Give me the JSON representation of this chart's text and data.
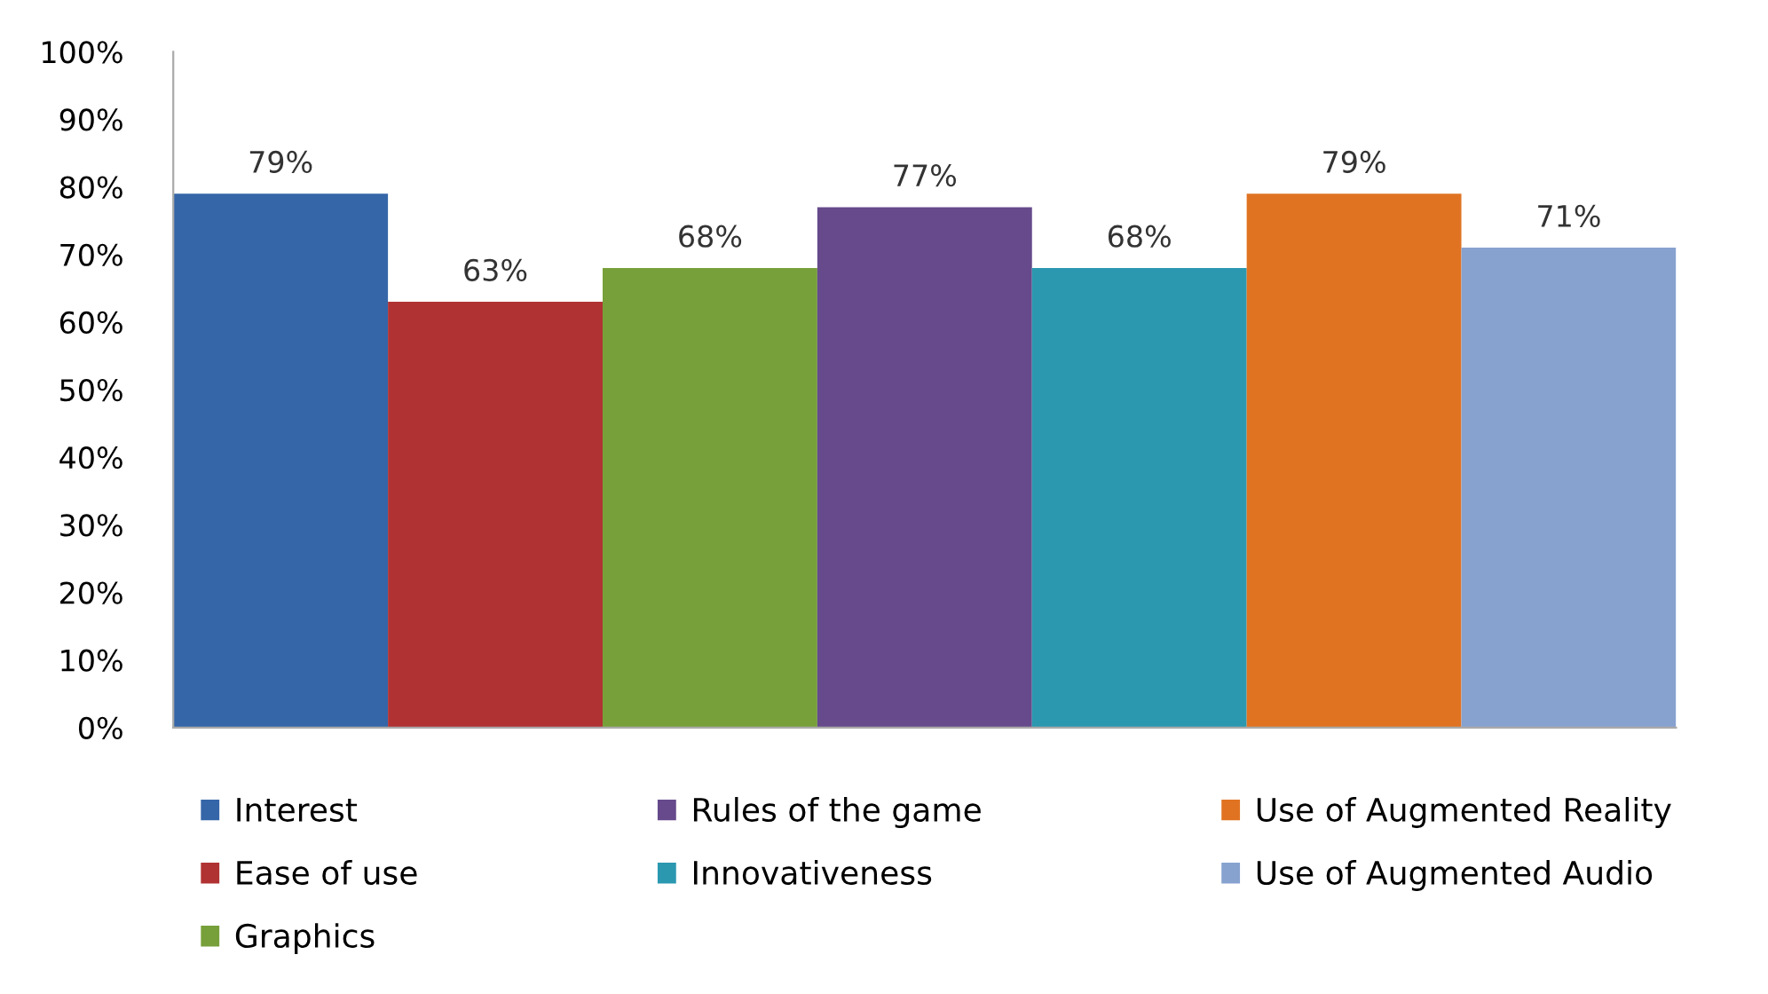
{
  "chart_data": {
    "type": "bar",
    "categories": [
      null
    ],
    "series": [
      {
        "name": "Interest",
        "color": "#3566a8",
        "values": [
          79
        ],
        "value_labels": [
          "79%"
        ]
      },
      {
        "name": "Ease of use",
        "color": "#b03232",
        "values": [
          63
        ],
        "value_labels": [
          "63%"
        ]
      },
      {
        "name": "Graphics",
        "color": "#77a03a",
        "values": [
          68
        ],
        "value_labels": [
          "68%"
        ]
      },
      {
        "name": "Rules of the game",
        "color": "#664a8c",
        "values": [
          77
        ],
        "value_labels": [
          "77%"
        ]
      },
      {
        "name": "Innovativeness",
        "color": "#2b98b0",
        "values": [
          68
        ],
        "value_labels": [
          "68%"
        ]
      },
      {
        "name": "Use of Augmented Reality",
        "color": "#e07322",
        "values": [
          79
        ],
        "value_labels": [
          "79%"
        ]
      },
      {
        "name": "Use of Augmented Audio",
        "color": "#87a2cf",
        "values": [
          71
        ],
        "value_labels": [
          "71%"
        ]
      }
    ],
    "ylim": [
      0,
      100
    ],
    "yticks": [
      {
        "value": 0,
        "label": "0%"
      },
      {
        "value": 10,
        "label": "10%"
      },
      {
        "value": 20,
        "label": "20%"
      },
      {
        "value": 30,
        "label": "30%"
      },
      {
        "value": 40,
        "label": "40%"
      },
      {
        "value": 50,
        "label": "50%"
      },
      {
        "value": 60,
        "label": "60%"
      },
      {
        "value": 70,
        "label": "70%"
      },
      {
        "value": 80,
        "label": "80%"
      },
      {
        "value": 90,
        "label": "90%"
      },
      {
        "value": 100,
        "label": "100%"
      }
    ],
    "grid": false,
    "legend": "bottom"
  }
}
